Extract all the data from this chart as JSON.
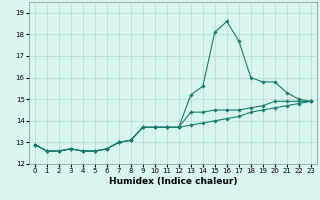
{
  "xlabel": "Humidex (Indice chaleur)",
  "x": [
    0,
    1,
    2,
    3,
    4,
    5,
    6,
    7,
    8,
    9,
    10,
    11,
    12,
    13,
    14,
    15,
    16,
    17,
    18,
    19,
    20,
    21,
    22,
    23
  ],
  "line1": [
    12.9,
    12.6,
    12.6,
    12.7,
    12.6,
    12.6,
    12.7,
    13.0,
    13.1,
    13.7,
    13.7,
    13.7,
    13.7,
    15.2,
    15.6,
    18.1,
    18.6,
    17.7,
    16.0,
    15.8,
    15.8,
    15.3,
    15.0,
    14.9
  ],
  "line2": [
    12.9,
    12.6,
    12.6,
    12.7,
    12.6,
    12.6,
    12.7,
    13.0,
    13.1,
    13.7,
    13.7,
    13.7,
    13.7,
    14.4,
    14.4,
    14.5,
    14.5,
    14.5,
    14.6,
    14.7,
    14.9,
    14.9,
    14.9,
    14.9
  ],
  "line3": [
    12.9,
    12.6,
    12.6,
    12.7,
    12.6,
    12.6,
    12.7,
    13.0,
    13.1,
    13.7,
    13.7,
    13.7,
    13.7,
    13.8,
    13.9,
    14.0,
    14.1,
    14.2,
    14.4,
    14.5,
    14.6,
    14.7,
    14.8,
    14.9
  ],
  "line_color": "#1a7a6e",
  "bg_color": "#d8f5f0",
  "grid_color": "#b5d8d2",
  "ylim": [
    12,
    19.5
  ],
  "yticks": [
    12,
    13,
    14,
    15,
    16,
    17,
    18,
    19
  ],
  "xlim": [
    -0.5,
    23.5
  ],
  "xticks": [
    0,
    1,
    2,
    3,
    4,
    5,
    6,
    7,
    8,
    9,
    10,
    11,
    12,
    13,
    14,
    15,
    16,
    17,
    18,
    19,
    20,
    21,
    22,
    23
  ],
  "tick_fontsize": 5.0,
  "xlabel_fontsize": 6.5,
  "marker": "D",
  "marker_size": 1.8,
  "linewidth": 0.8
}
